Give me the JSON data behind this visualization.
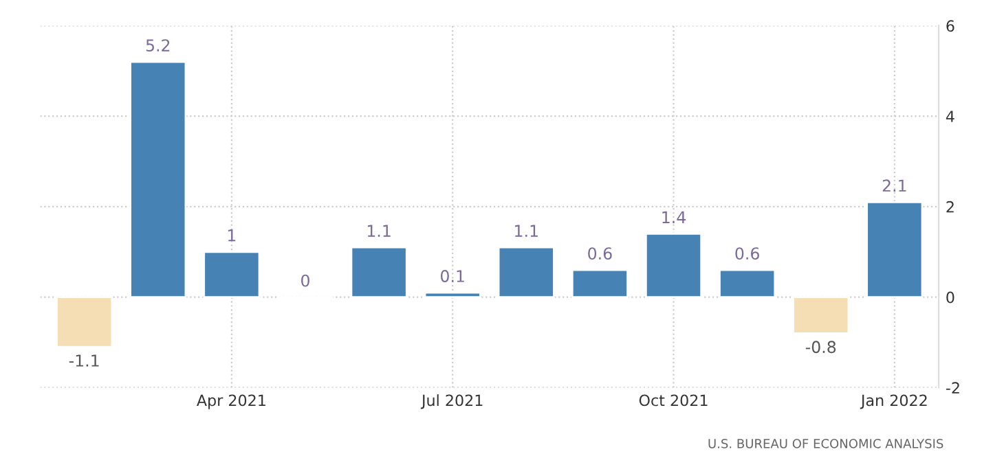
{
  "chart_data": {
    "type": "bar",
    "categories": [
      null,
      null,
      "Apr 2021",
      null,
      null,
      "Jul 2021",
      null,
      null,
      "Oct 2021",
      null,
      null,
      "Jan 2022"
    ],
    "values": [
      -1.1,
      5.2,
      1,
      0,
      1.1,
      0.1,
      1.1,
      0.6,
      1.4,
      0.6,
      -0.8,
      2.1
    ],
    "colors": [
      "#f5deb3",
      "#4682b4",
      "#4682b4",
      null,
      "#4682b4",
      "#4682b4",
      "#4682b4",
      "#4682b4",
      "#4682b4",
      "#4682b4",
      "#f5deb3",
      "#4682b4"
    ],
    "ylim": [
      -2,
      6
    ],
    "yticks": [
      -2,
      0,
      2,
      4,
      6
    ],
    "grid": true,
    "data_labels": true,
    "annotations": [
      "U.S. BUREAU OF ECONOMIC ANALYSIS"
    ]
  }
}
